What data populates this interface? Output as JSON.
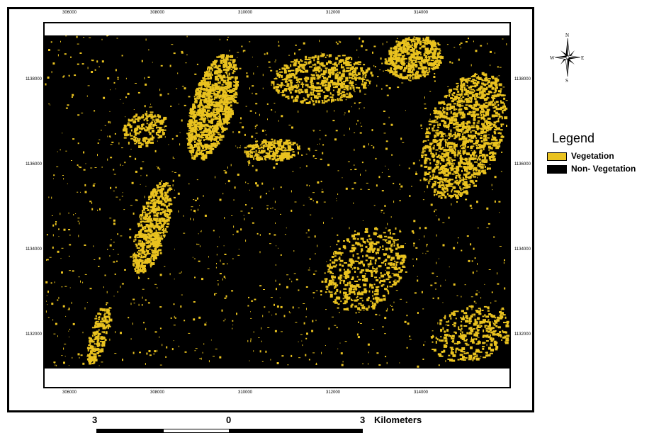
{
  "map": {
    "colors": {
      "vegetation": "#e9c21f",
      "non_vegetation": "#000000",
      "frame": "#000000"
    },
    "ticks_x": [
      "306000",
      "308000",
      "310000",
      "312000",
      "314000"
    ],
    "ticks_y": [
      "1138000",
      "1136000",
      "1134000",
      "1132000"
    ]
  },
  "north_arrow": {
    "icon": "compass-rose-icon",
    "n": "N",
    "s": "S",
    "e": "E",
    "w": "W"
  },
  "legend": {
    "title": "Legend",
    "items": [
      {
        "label": "Vegetation",
        "color": "#e9c21f"
      },
      {
        "label": "Non- Vegetation",
        "color": "#000000"
      }
    ]
  },
  "scale_bar": {
    "left_label": "3",
    "mid_label": "0",
    "right_label": "3",
    "unit": "Kilometers"
  }
}
